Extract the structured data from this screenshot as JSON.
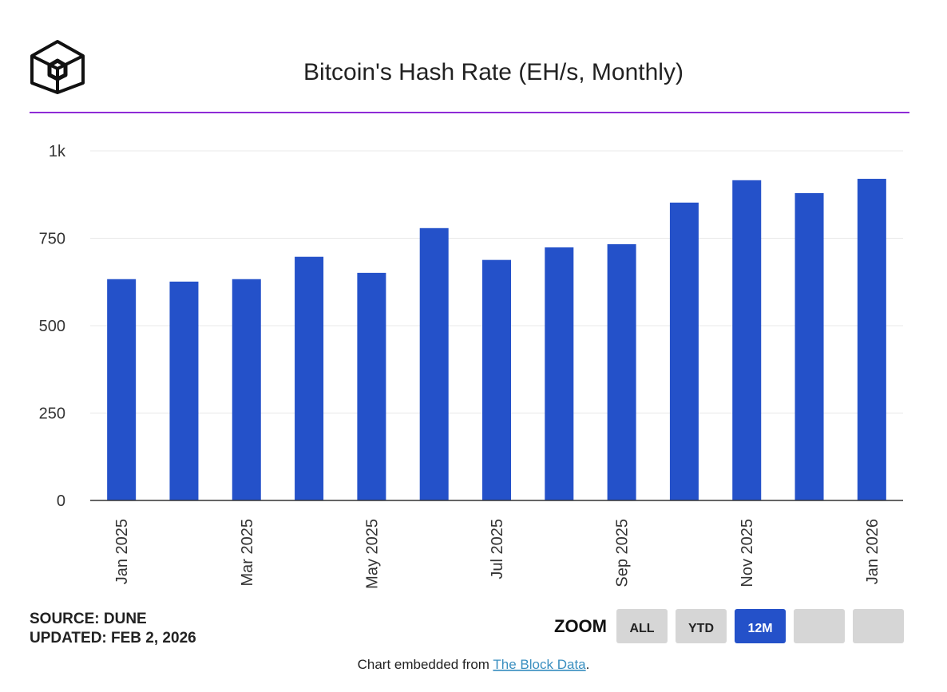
{
  "chart_data": {
    "type": "bar",
    "title": "Bitcoin's Hash Rate (EH/s, Monthly)",
    "categories": [
      "Jan 2025",
      null,
      "Mar 2025",
      null,
      "May 2025",
      null,
      "Jul 2025",
      null,
      "Sep 2025",
      null,
      "Nov 2025",
      null,
      "Jan 2026"
    ],
    "values": [
      633,
      626,
      633,
      697,
      651,
      779,
      688,
      724,
      733,
      852,
      916,
      879,
      920
    ],
    "color": "#2451c9",
    "ylim": [
      0,
      1000
    ],
    "yticks": [
      0,
      250,
      500,
      750,
      {
        "value": 1000,
        "label": "1k"
      }
    ],
    "grid": true
  },
  "source": "SOURCE: DUNE",
  "updated": "UPDATED: FEB 2, 2026",
  "zoom": {
    "label": "ZOOM",
    "buttons": [
      "ALL",
      "YTD",
      "12M"
    ],
    "active": "12M"
  },
  "footer": {
    "text": "Chart embedded from",
    "link": "The Block Data",
    "suffix": "."
  }
}
